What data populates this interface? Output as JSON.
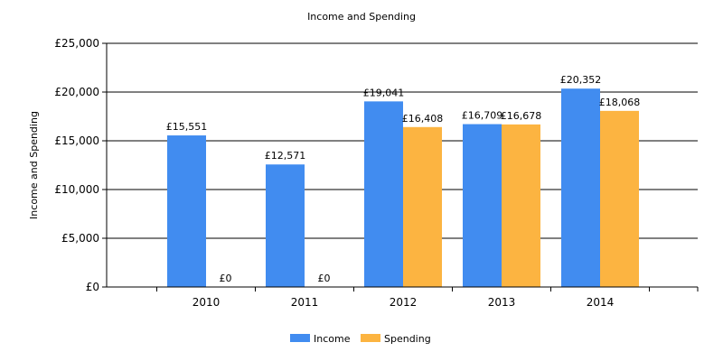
{
  "chart_data": {
    "type": "bar",
    "title": "Income and Spending",
    "xlabel": "",
    "ylabel": "Income and Spending",
    "categories": [
      "2010",
      "2011",
      "2012",
      "2013",
      "2014"
    ],
    "series": [
      {
        "name": "Income",
        "color": "#418CF0",
        "values": [
          15551,
          12571,
          19041,
          16709,
          20352
        ],
        "labels": [
          "£15,551",
          "£12,571",
          "£19,041",
          "£16,709",
          "£20,352"
        ]
      },
      {
        "name": "Spending",
        "color": "#FCB441",
        "values": [
          0,
          0,
          16408,
          16678,
          18068
        ],
        "labels": [
          "£0",
          "£0",
          "£16,408",
          "£16,678",
          "£18,068"
        ]
      }
    ],
    "ylim": [
      0,
      25000
    ],
    "yticks": [
      0,
      5000,
      10000,
      15000,
      20000,
      25000
    ],
    "ytick_labels": [
      "£0",
      "£5,000",
      "£10,000",
      "£15,000",
      "£20,000",
      "£25,000"
    ],
    "grid": true,
    "legend": "bottom-center"
  }
}
